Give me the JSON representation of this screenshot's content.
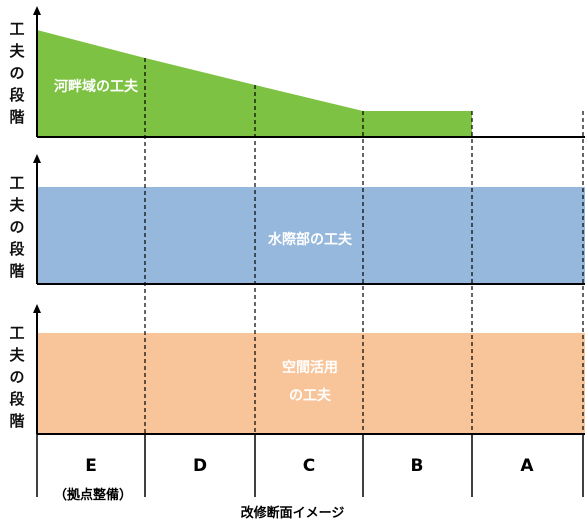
{
  "axis_label_chars": [
    "工",
    "夫",
    "の",
    "段",
    "階"
  ],
  "zones": {
    "riverside": {
      "label": "河畔域の工夫",
      "color": "#7dc242"
    },
    "waterfront": {
      "label": "水際部の工夫",
      "color": "#95b8dc"
    },
    "space": {
      "label_line1": "空間活用",
      "label_line2": "の工夫",
      "color": "#f8c59a"
    }
  },
  "sections": [
    {
      "id": "E",
      "label": "E",
      "sublabel": "（拠点整備）"
    },
    {
      "id": "D",
      "label": "D"
    },
    {
      "id": "C",
      "label": "C"
    },
    {
      "id": "B",
      "label": "B"
    },
    {
      "id": "A",
      "label": "A"
    }
  ],
  "caption": "改修断面イメージ"
}
